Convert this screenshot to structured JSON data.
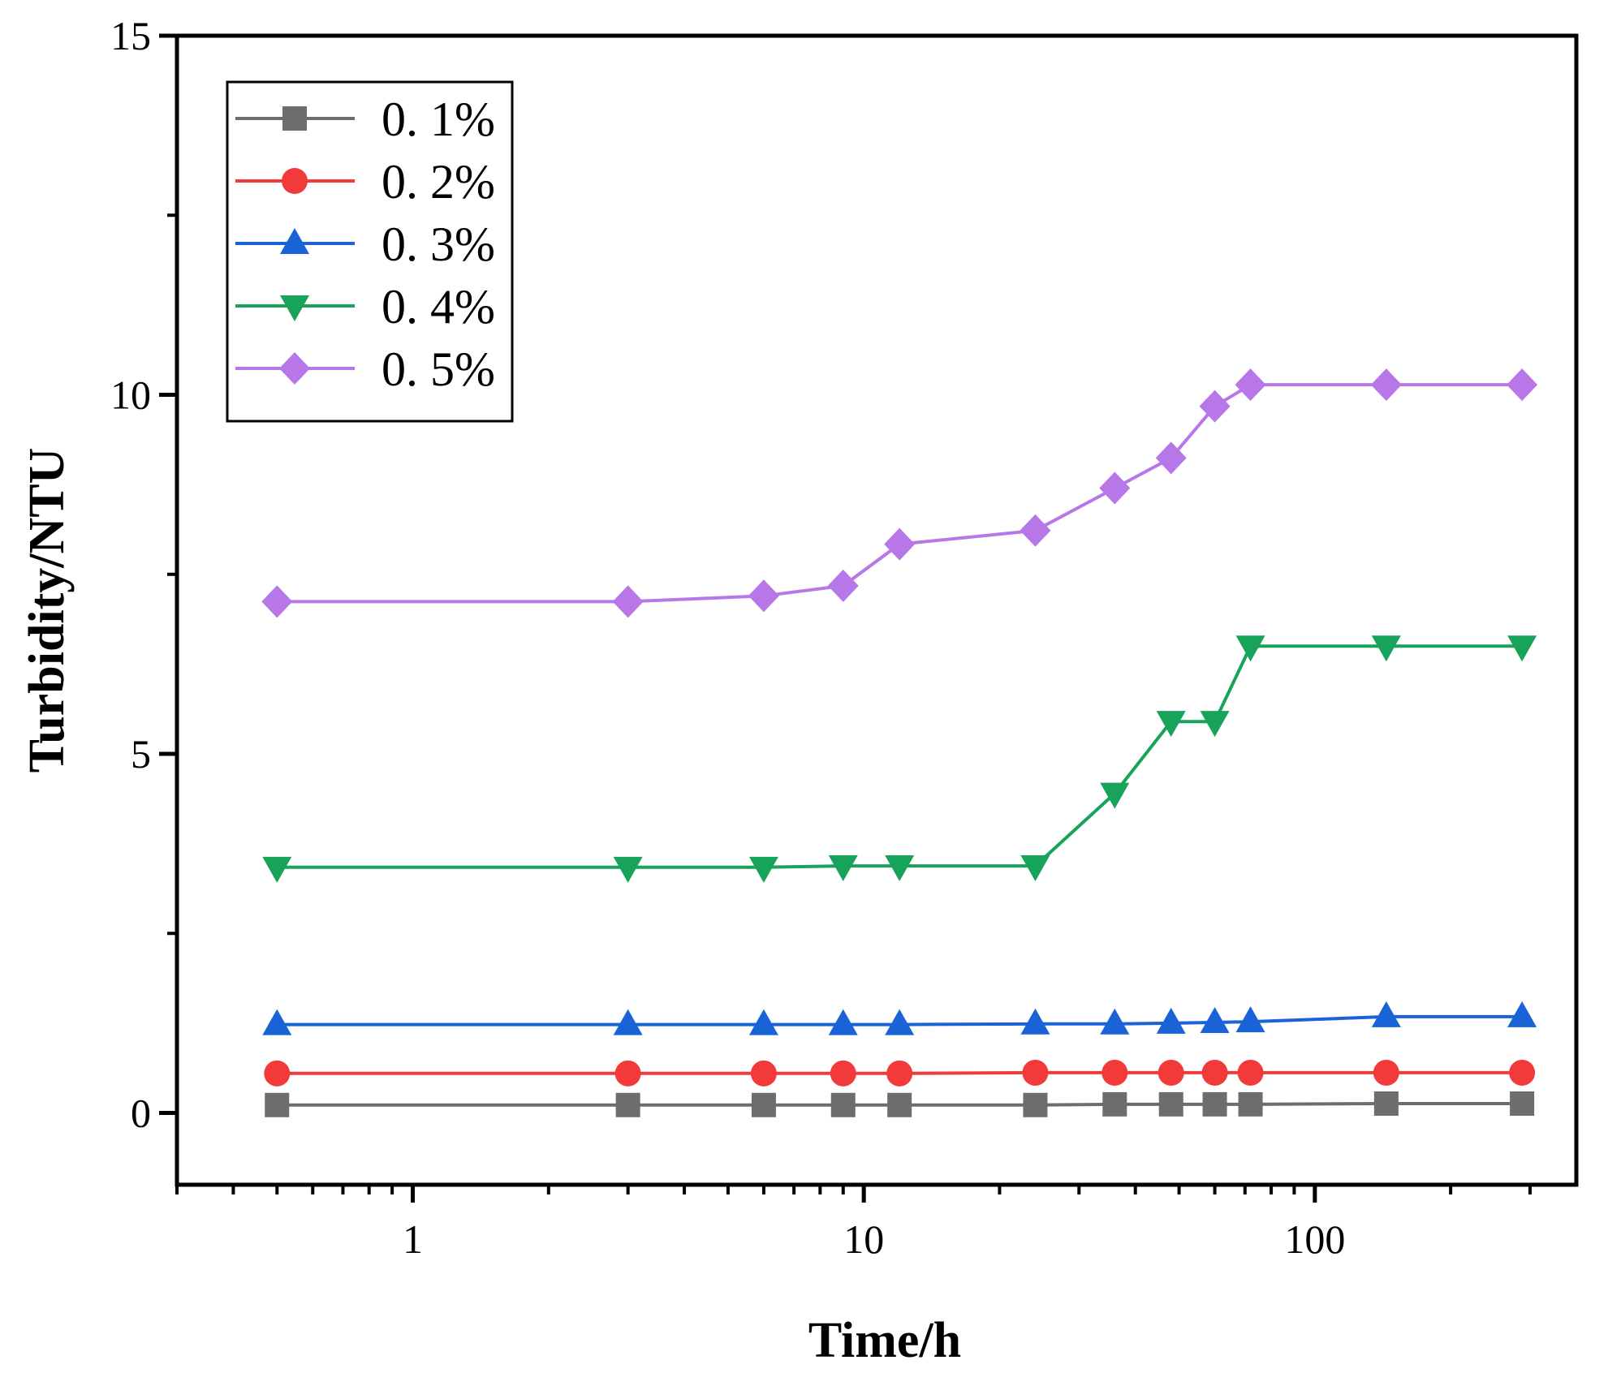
{
  "chart_data": {
    "type": "line",
    "xlabel": "Time/h",
    "ylabel": "Turbidity/NTU",
    "xscale": "log",
    "xlim": [
      0.3,
      380
    ],
    "ylim": [
      -1,
      15
    ],
    "x_tick_labels": [
      "1",
      "10",
      "100"
    ],
    "y_tick_labels": [
      "0",
      "5",
      "10",
      "15"
    ],
    "legend_position": "top-left",
    "x": [
      0.5,
      3,
      6,
      9,
      12,
      24,
      36,
      48,
      60,
      72,
      144,
      288
    ],
    "series": [
      {
        "name": "0. 1%",
        "marker": "square",
        "color": "#6d6d6d",
        "values": [
          0.11,
          0.11,
          0.11,
          0.11,
          0.11,
          0.11,
          0.12,
          0.12,
          0.12,
          0.12,
          0.13,
          0.13
        ]
      },
      {
        "name": "0. 2%",
        "marker": "circle",
        "color": "#f23a3a",
        "values": [
          0.55,
          0.55,
          0.55,
          0.55,
          0.55,
          0.56,
          0.56,
          0.56,
          0.56,
          0.56,
          0.56,
          0.56
        ]
      },
      {
        "name": "0. 3%",
        "marker": "triangle-up",
        "color": "#1a63d6",
        "values": [
          1.23,
          1.23,
          1.23,
          1.23,
          1.23,
          1.24,
          1.24,
          1.25,
          1.26,
          1.27,
          1.34,
          1.34
        ]
      },
      {
        "name": "0. 4%",
        "marker": "triangle-down",
        "color": "#17a35a",
        "values": [
          3.42,
          3.42,
          3.42,
          3.44,
          3.44,
          3.44,
          4.45,
          5.45,
          5.45,
          6.5,
          6.5,
          6.5
        ]
      },
      {
        "name": "0. 5%",
        "marker": "diamond",
        "color": "#b877e8",
        "values": [
          7.12,
          7.12,
          7.2,
          7.34,
          7.92,
          8.11,
          8.7,
          9.12,
          9.84,
          10.14,
          10.14,
          10.14
        ]
      }
    ]
  }
}
